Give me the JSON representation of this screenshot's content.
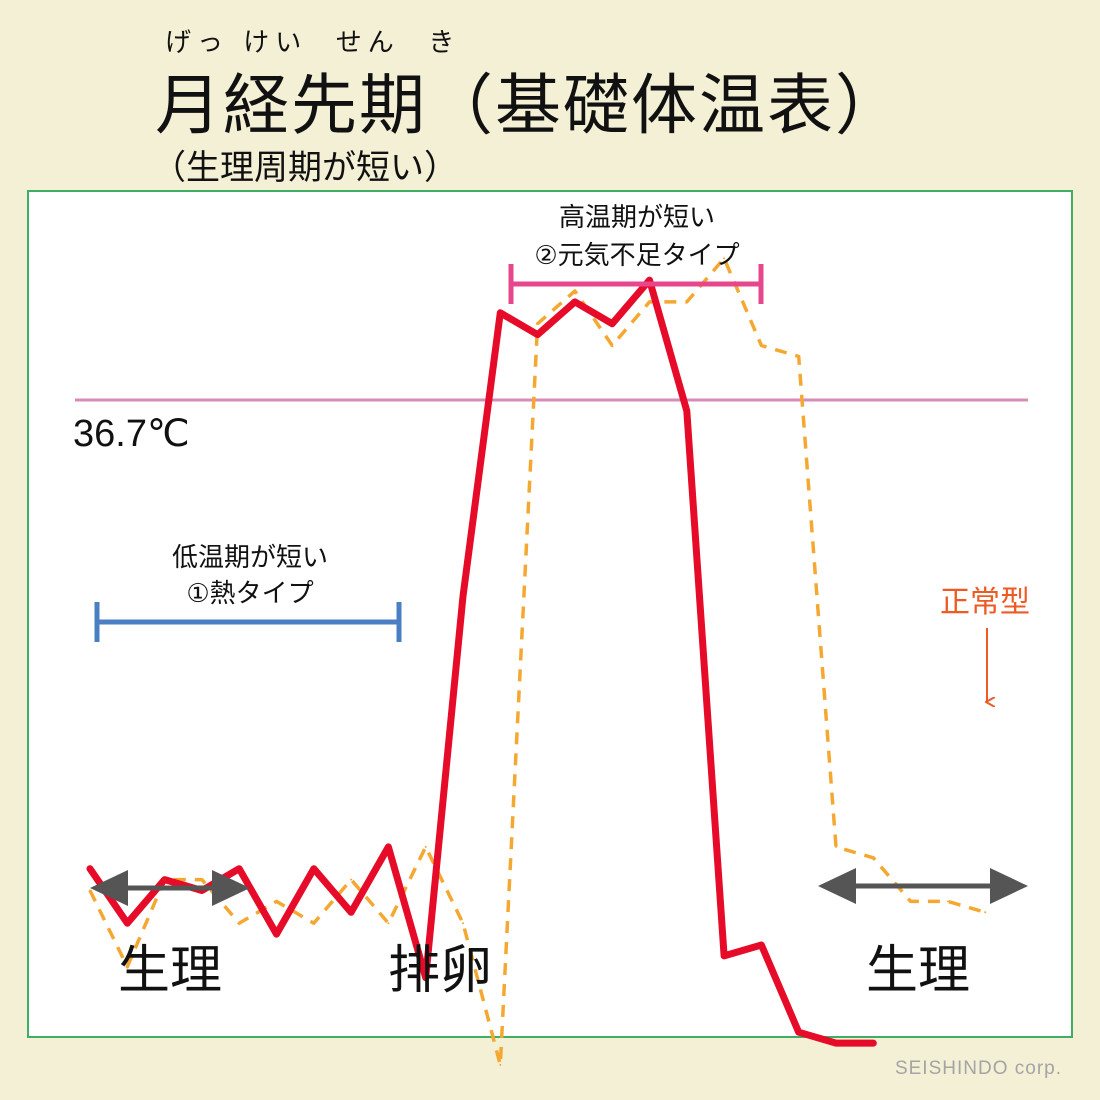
{
  "header": {
    "ruby": "げっ けい  せん  き",
    "title": "月経先期（基礎体温表）",
    "subtitle": "（生理周期が短い）"
  },
  "credit": "SEISHINDO corp.",
  "colors": {
    "main_line": "#e60b28",
    "normal_line": "#f4a832",
    "threshold_line": "#d98bb8",
    "low_bracket": "#4a7fc3",
    "high_bracket": "#e8468c",
    "normal_label": "#ee5a24",
    "phase_arrow": "#555555",
    "frame": "#3fae62",
    "background": "#f3f0d6"
  },
  "chart_data": {
    "type": "line",
    "threshold": {
      "value": 36.7,
      "label": "36.7℃"
    },
    "series": [
      {
        "style": "solid",
        "x": [
          0,
          1,
          2,
          3,
          4,
          5,
          6,
          7,
          8,
          9,
          10,
          11,
          12,
          13,
          14,
          15,
          16,
          17,
          18,
          19,
          20,
          21,
          22,
          23,
          24
        ],
        "y": [
          36.27,
          36.22,
          36.26,
          36.25,
          36.27,
          36.21,
          36.27,
          36.23,
          36.29,
          36.17,
          36.52,
          36.78,
          36.76,
          36.79,
          36.77,
          36.81,
          36.69,
          36.19,
          36.2,
          36.12,
          36.11,
          36.11,
          null,
          null,
          null
        ]
      },
      {
        "name": "正常型",
        "style": "dashed",
        "x": [
          0,
          1,
          2,
          3,
          4,
          5,
          6,
          7,
          8,
          9,
          10,
          11,
          12,
          13,
          14,
          15,
          16,
          17,
          18,
          19,
          20,
          21,
          22,
          23,
          24
        ],
        "y": [
          36.25,
          36.18,
          36.26,
          36.26,
          36.22,
          36.24,
          36.22,
          36.26,
          36.22,
          36.29,
          36.22,
          36.09,
          36.77,
          36.8,
          36.75,
          36.79,
          36.79,
          36.83,
          36.75,
          36.74,
          36.29,
          36.28,
          36.24,
          36.24,
          36.23
        ]
      }
    ],
    "annotations": {
      "low_period": {
        "line1": "低温期が短い",
        "line2": "①熱タイプ"
      },
      "high_period": {
        "line1": "高温期が短い",
        "line2": "②元気不足タイプ"
      },
      "normal_label": "正常型",
      "phases": [
        "生理",
        "排卵",
        "生理"
      ]
    }
  }
}
